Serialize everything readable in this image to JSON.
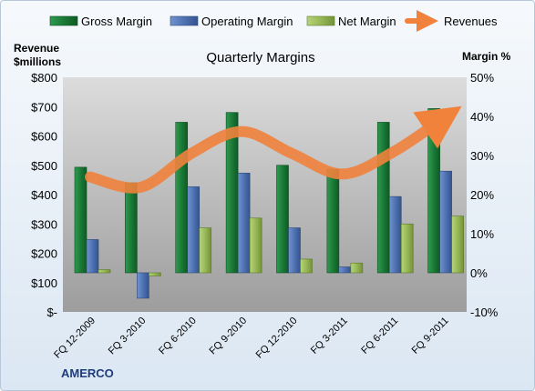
{
  "chart_data": {
    "type": "bar",
    "title": "Quarterly Margins",
    "categories": [
      "FQ 12-2009",
      "FQ 3-2010",
      "FQ 6-2010",
      "FQ 9-2010",
      "FQ 12-2010",
      "FQ 3-2011",
      "FQ 6-2011",
      "FQ 9-2011"
    ],
    "series": [
      {
        "name": "Gross Margin",
        "axis": "right",
        "unit": "%",
        "color": "#1e7a3c",
        "values": [
          27,
          23,
          38.5,
          41,
          27.5,
          26.5,
          38.5,
          42
        ]
      },
      {
        "name": "Operating Margin",
        "axis": "right",
        "unit": "%",
        "color": "#4f72b3",
        "values": [
          8.5,
          -6.5,
          22,
          25.5,
          11.5,
          1.5,
          19.5,
          26
        ]
      },
      {
        "name": "Net Margin",
        "axis": "right",
        "unit": "%",
        "color": "#9bbb59",
        "values": [
          0.8,
          -0.8,
          11.5,
          14,
          3.5,
          2.5,
          12.5,
          14.5
        ]
      },
      {
        "name": "Revenues",
        "axis": "left",
        "unit": "$millions",
        "color": "#f0823c",
        "values": [
          460,
          425,
          540,
          615,
          540,
          470,
          545,
          660
        ]
      }
    ],
    "left_axis": {
      "label_line1": "Revenue",
      "label_line2": "$millions",
      "min": 0,
      "max": 800,
      "step": 100,
      "ticks": [
        "$-",
        "$100",
        "$200",
        "$300",
        "$400",
        "$500",
        "$600",
        "$700",
        "$800"
      ]
    },
    "right_axis": {
      "label": "Margin %",
      "min": -10,
      "max": 50,
      "step": 10,
      "ticks": [
        "-10%",
        "0%",
        "10%",
        "20%",
        "30%",
        "40%",
        "50%"
      ]
    },
    "legend_position": "top",
    "grid": false
  },
  "footer": {
    "company": "AMERCO"
  }
}
